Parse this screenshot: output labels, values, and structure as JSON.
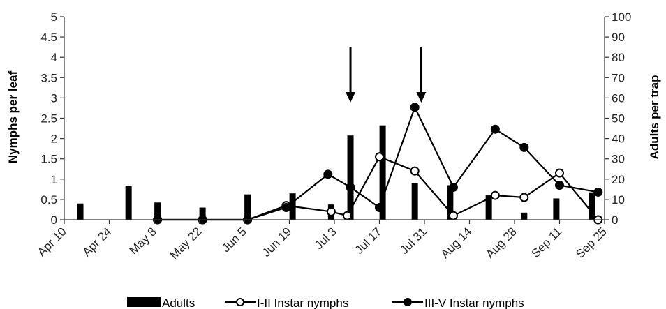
{
  "chart_data": {
    "type": "bar",
    "x_tick_labels": [
      "Apr 10",
      "Apr 24",
      "May 8",
      "May 22",
      "Jun 5",
      "Jun 19",
      "Jul 3",
      "Jul 17",
      "Jul 31",
      "Aug 14",
      "Aug 28",
      "Sep 11",
      "Sep 25"
    ],
    "y_left": {
      "label": "Nymphs per leaf",
      "lim": [
        0,
        5
      ],
      "ticks": [
        "0",
        "0.5",
        "1",
        "1.5",
        "2",
        "2.5",
        "3",
        "3.5",
        "4",
        "4.5",
        "5"
      ]
    },
    "y_right": {
      "label": "Adults per trap",
      "lim": [
        0,
        100
      ],
      "ticks": [
        "0",
        "10",
        "20",
        "30",
        "40",
        "50",
        "60",
        "70",
        "80",
        "90",
        "100"
      ]
    },
    "series": [
      {
        "name": "Adults",
        "type": "bar",
        "axis": "right",
        "x": [
          "Apr 15",
          "Apr 30",
          "May 9",
          "May 23",
          "Jun 6",
          "Jun 20",
          "Jul 2",
          "Jul 8",
          "Jul 18",
          "Jul 28",
          "Aug 8",
          "Aug 20",
          "Aug 31",
          "Sep 10",
          "Sep 21"
        ],
        "values": [
          8,
          16.5,
          8.5,
          6,
          12.5,
          13,
          7.5,
          41.5,
          46.5,
          18,
          17,
          12,
          3.5,
          10.5,
          13.5
        ]
      },
      {
        "name": "I-II Instar nymphs",
        "type": "line",
        "axis": "left",
        "marker": "open-circle",
        "x": [
          "May 9",
          "May 23",
          "Jun 6",
          "Jun 18",
          "Jul 2",
          "Jul 7",
          "Jul 17",
          "Jul 28",
          "Aug 9",
          "Aug 22",
          "Aug 31",
          "Sep 11",
          "Sep 23"
        ],
        "values": [
          0,
          0,
          0,
          0.35,
          0.2,
          0.1,
          1.55,
          1.2,
          0.1,
          0.6,
          0.55,
          1.15,
          0
        ]
      },
      {
        "name": "III-V Instar nymphs",
        "type": "line",
        "axis": "left",
        "marker": "filled-circle",
        "x": [
          "May 9",
          "May 23",
          "Jun 6",
          "Jun 18",
          "Jul 1",
          "Jul 8",
          "Jul 17",
          "Jul 28",
          "Aug 9",
          "Aug 22",
          "Aug 31",
          "Sep 11",
          "Sep 23"
        ],
        "values": [
          0,
          0,
          0,
          0.3,
          1.12,
          0.8,
          0.3,
          2.77,
          0.8,
          2.23,
          1.78,
          0.85,
          0.68
        ]
      }
    ],
    "annotations": [
      {
        "type": "arrow",
        "direction": "down",
        "x": "Jul 8"
      },
      {
        "type": "arrow",
        "direction": "down",
        "x": "Jul 30"
      }
    ],
    "legend": {
      "placement": "bottom",
      "entries": [
        "Adults",
        "I-II Instar nymphs",
        "III-V Instar nymphs"
      ]
    },
    "grid": false,
    "colors": {
      "bars": "#000000",
      "lines": "#000000",
      "open_marker_fill": "#ffffff"
    }
  }
}
